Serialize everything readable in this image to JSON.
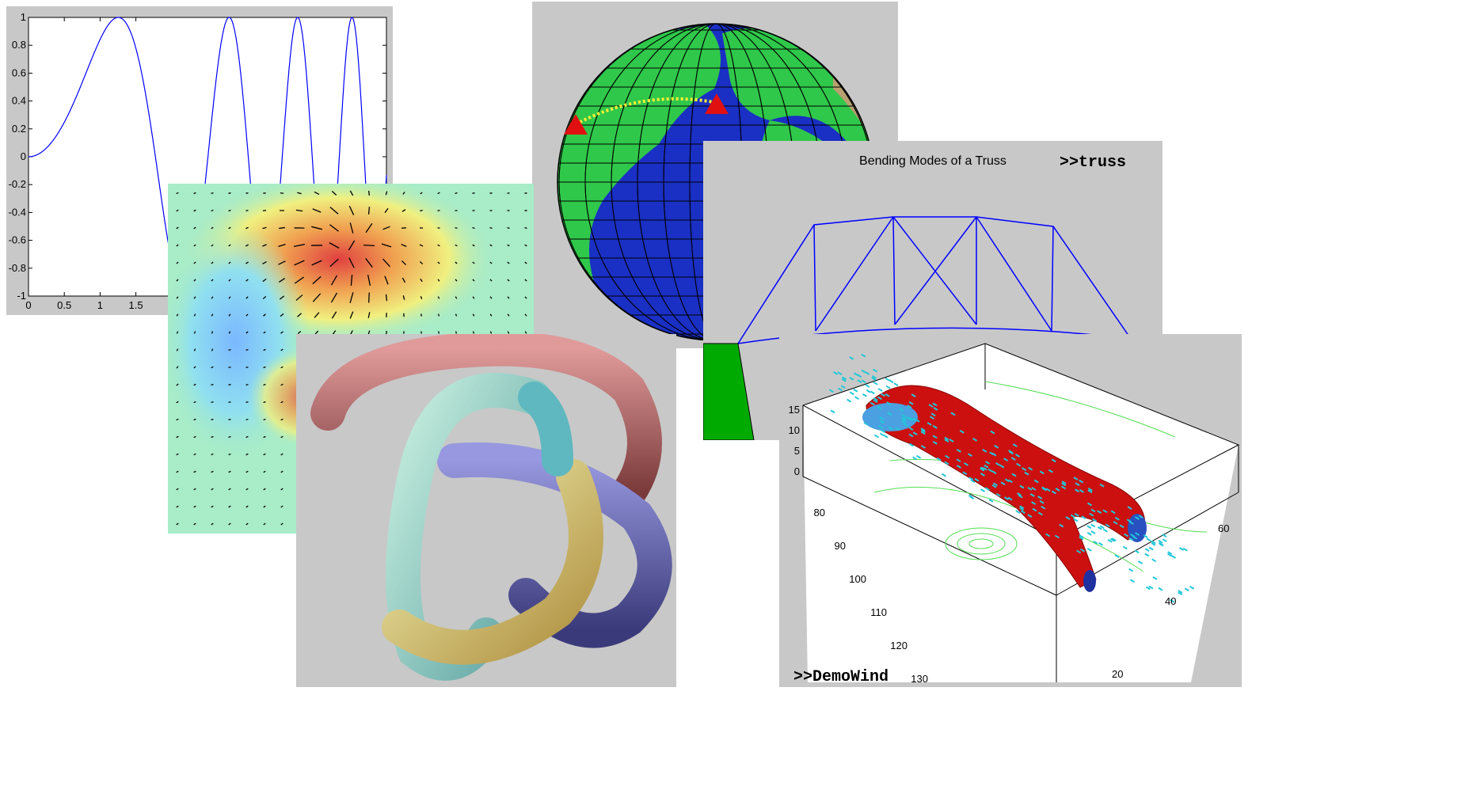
{
  "colors": {
    "figure_bg": "#c8c8c8",
    "line_blue": "#0000ff",
    "globe_ocean": "#1a2fc4",
    "globe_land": "#2fc84a",
    "route_yellow": "#ffee33",
    "marker_red": "#e01010",
    "truss_base_green": "#00aa00",
    "isosurface_red": "#cc1010",
    "cone_cyan": "#22c8d8",
    "streamline_green": "#55dd55"
  },
  "chart_data": [
    {
      "type": "line",
      "title": "",
      "xlabel": "",
      "ylabel": "",
      "xlim": [
        0,
        5
      ],
      "ylim": [
        -1,
        1
      ],
      "x_ticks": [
        "0",
        "0.5",
        "1",
        "1.5"
      ],
      "y_ticks": [
        "1",
        "0.8",
        "0.6",
        "0.4",
        "0.2",
        "0",
        "-0.2",
        "-0.4",
        "-0.6",
        "-0.8",
        "-1"
      ],
      "series": [
        {
          "function": "sin(x^2)",
          "x_range": [
            0,
            5
          ]
        }
      ],
      "grid": false
    },
    {
      "type": "quiver",
      "description_source": "gradient vector field over colored pseudocolor background",
      "colormap": "jet",
      "grid": false
    },
    {
      "type": "surface",
      "object": "knot tube",
      "colors": [
        "#a85a5a",
        "#8ed4c0",
        "#5a5aa8",
        "#d8a860",
        "#e0e08a"
      ]
    },
    {
      "type": "surface",
      "object": "globe",
      "route_markers": 2
    },
    {
      "type": "line",
      "title": "Bending Modes of a Truss",
      "command": ">>truss"
    },
    {
      "type": "volume",
      "command": ">>DemoWind",
      "z_ticks": [
        "15",
        "10",
        "5",
        "0"
      ],
      "x_ticks": [
        "80",
        "90",
        "100",
        "110",
        "120",
        "130"
      ],
      "y_ticks": [
        "60",
        "40",
        "20"
      ]
    }
  ]
}
